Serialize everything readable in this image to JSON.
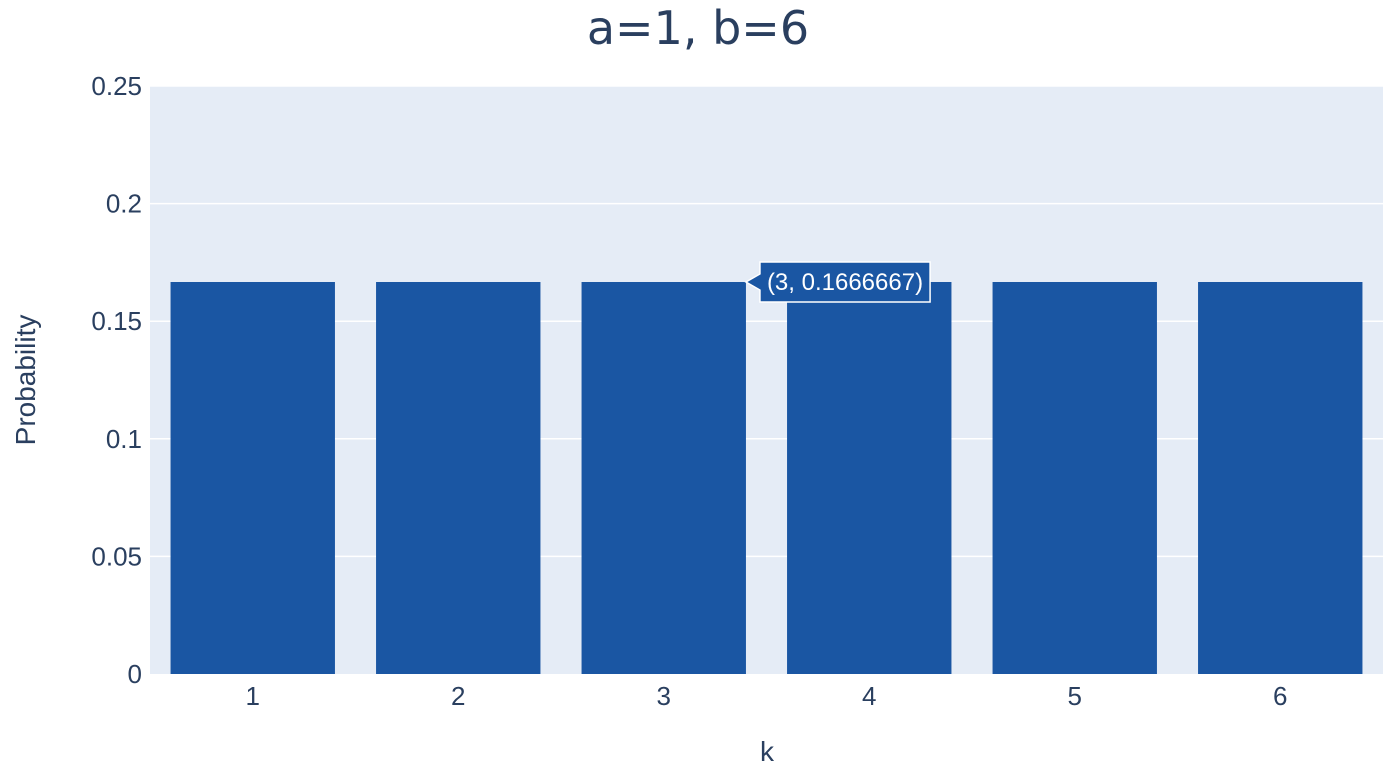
{
  "chart_data": {
    "type": "bar",
    "title": "a=1, b=6",
    "xlabel": "k",
    "ylabel": "Probability",
    "categories": [
      "1",
      "2",
      "3",
      "4",
      "5",
      "6"
    ],
    "values": [
      0.1666667,
      0.1666667,
      0.1666667,
      0.1666667,
      0.1666667,
      0.1666667
    ],
    "ylim": [
      0,
      0.25
    ],
    "yticks": [
      0,
      0.05,
      0.1,
      0.15,
      0.2,
      0.25
    ],
    "ytick_labels": [
      "0",
      "0.05",
      "0.1",
      "0.15",
      "0.2",
      "0.25"
    ],
    "grid": true,
    "legend": "none",
    "hover": {
      "category": "3",
      "label": "(3, 0.1666667)"
    }
  },
  "colors": {
    "bar": "#1a56a3",
    "plot_bg": "#e5ecf6",
    "grid": "#ffffff",
    "text": "#2a3f5f",
    "hover_border": "#ffffff"
  }
}
